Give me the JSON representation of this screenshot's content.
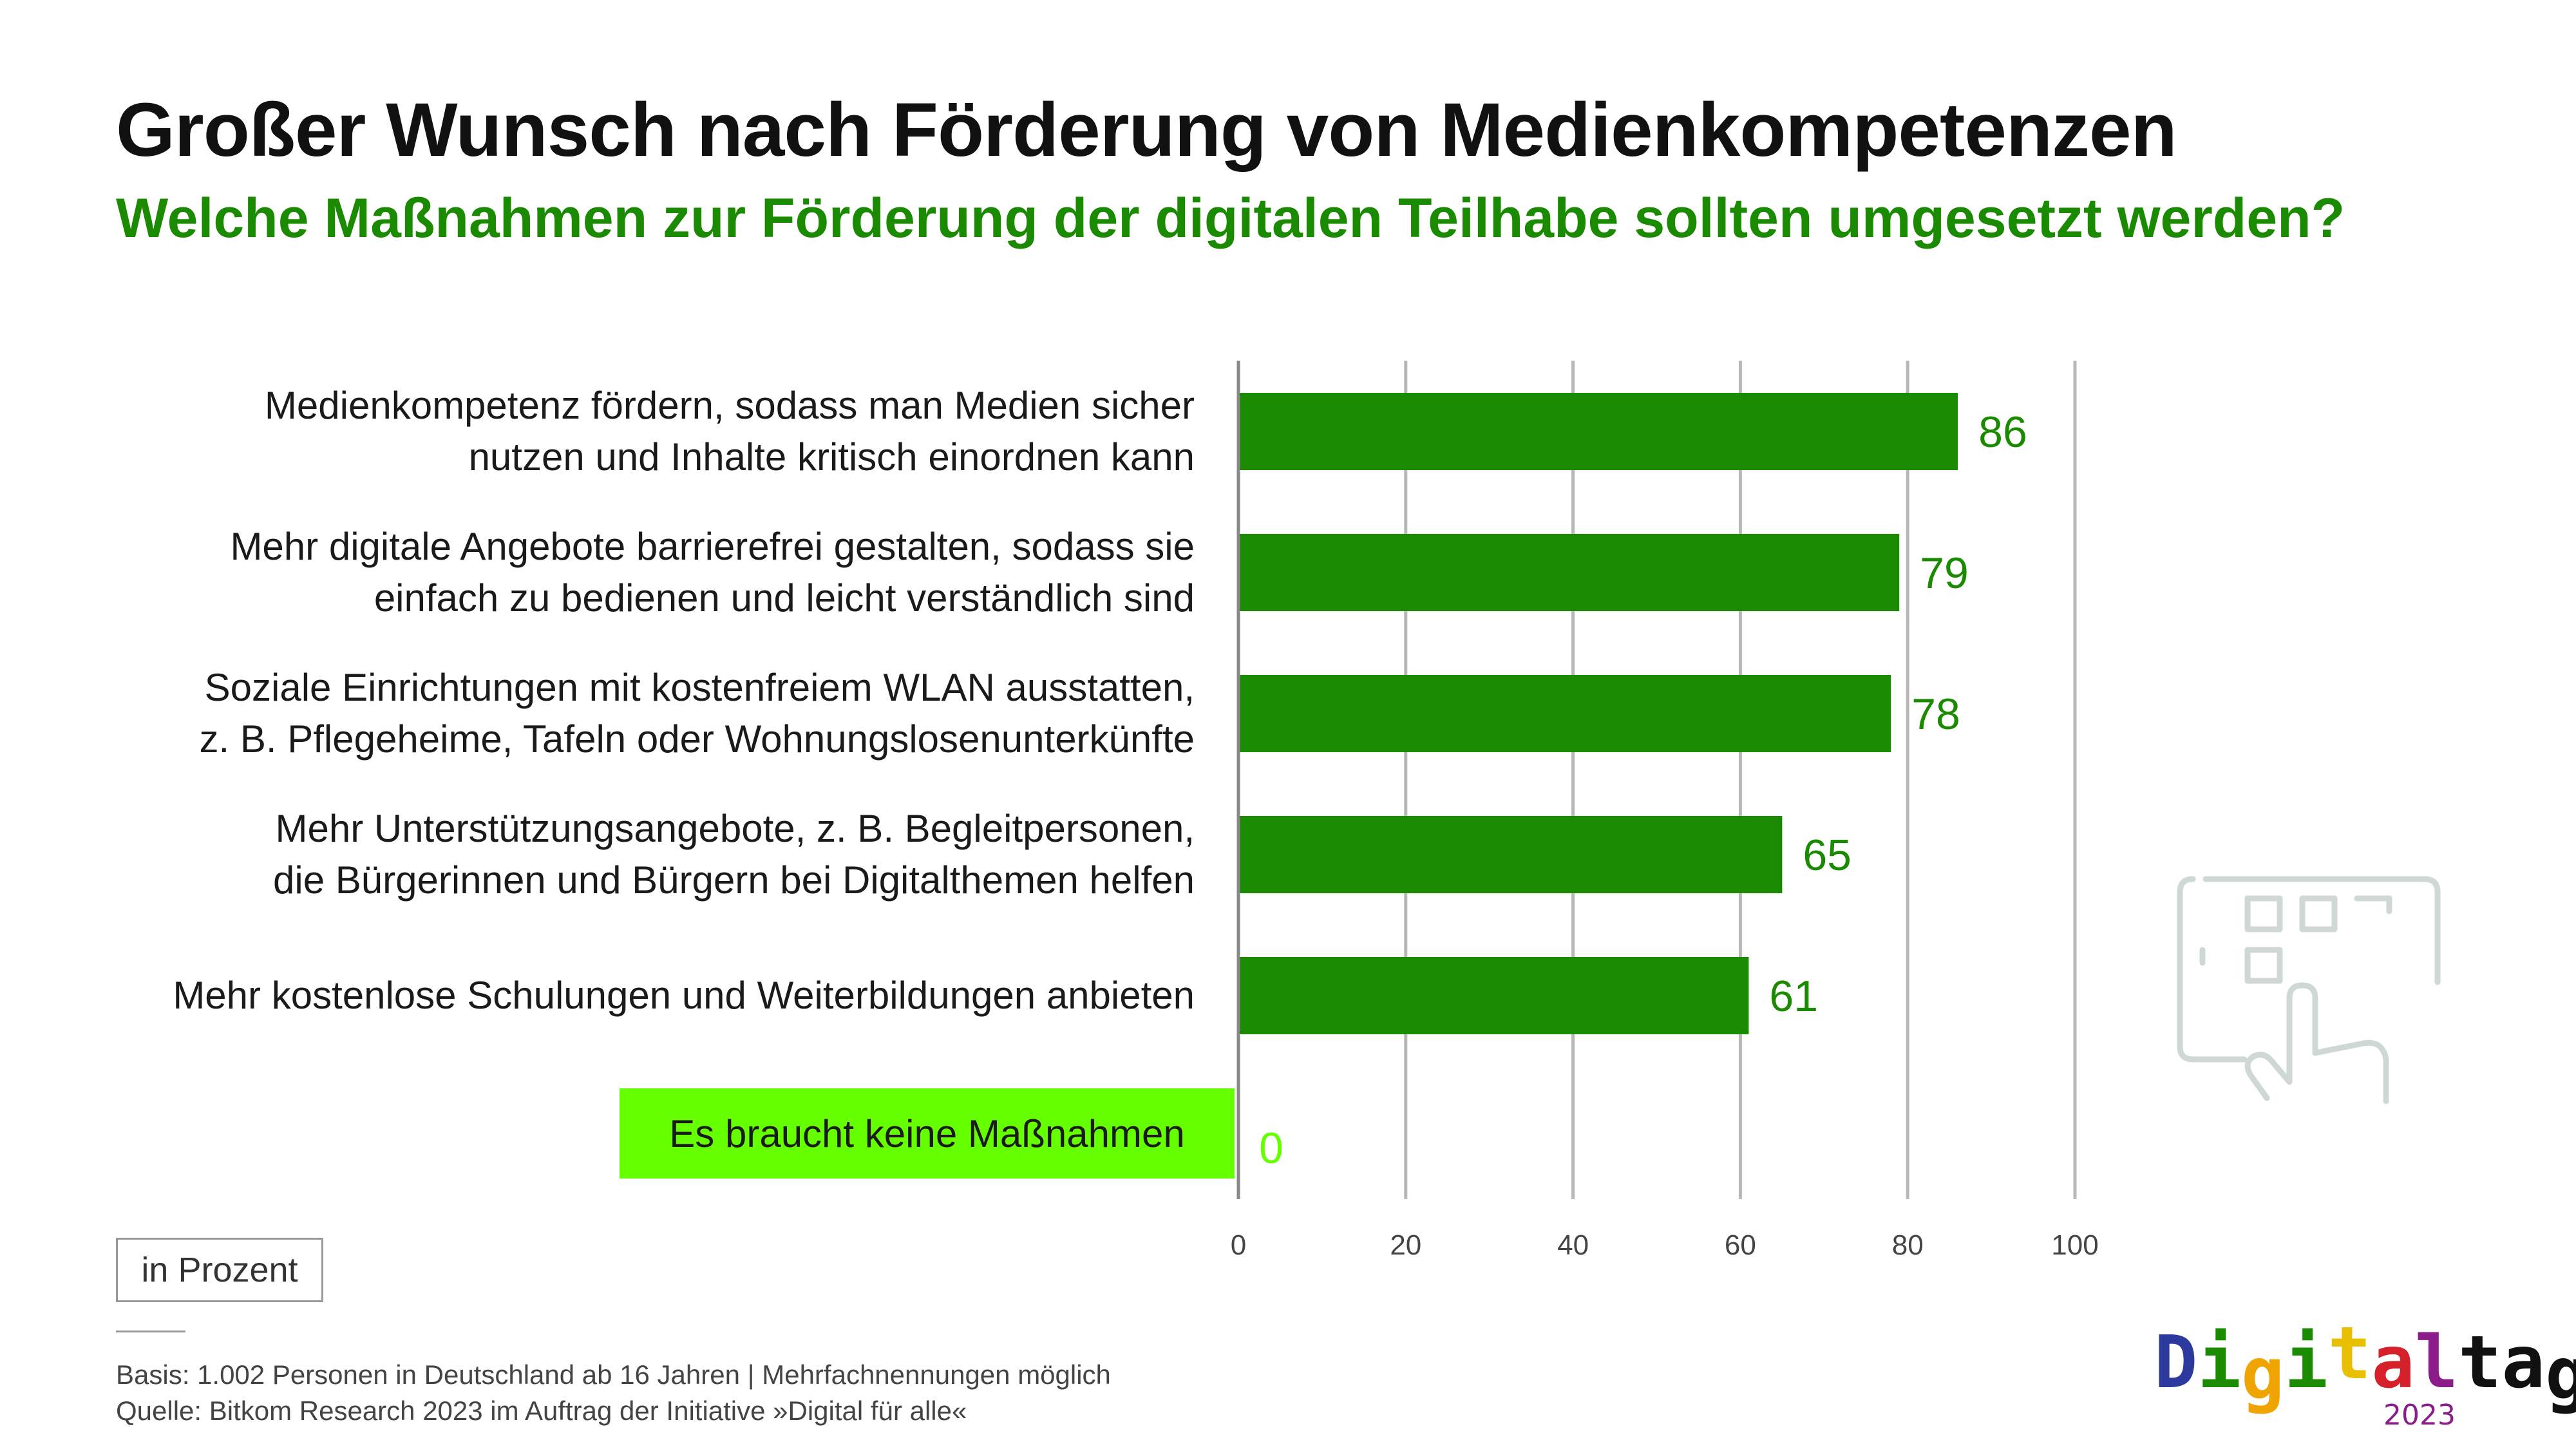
{
  "title": "Großer Wunsch nach Förderung von Medienkompetenzen",
  "subtitle": "Welche Maßnahmen zur Förderung der digitalen Teilhabe sollten umgesetzt werden?",
  "chart_data": {
    "type": "bar",
    "orientation": "horizontal",
    "categories": [
      [
        "Medienkompetenz fördern, sodass man Medien sicher",
        "nutzen und Inhalte kritisch einordnen kann"
      ],
      [
        "Mehr digitale Angebote barrierefrei gestalten, sodass sie",
        "einfach zu bedienen und leicht verständlich sind"
      ],
      [
        "Soziale Einrichtungen mit kostenfreiem WLAN ausstatten,",
        "z. B. Pflegeheime, Tafeln oder Wohnungslosenunterkünfte"
      ],
      [
        "Mehr Unterstützungsangebote, z. B. Begleitpersonen,",
        "die Bürgerinnen und Bürgern bei Digitalthemen helfen"
      ],
      [
        "Mehr kostenlose Schulungen und Weiterbildungen anbieten"
      ],
      [
        "Es braucht keine Maßnahmen"
      ]
    ],
    "values": [
      86,
      79,
      78,
      65,
      61,
      0
    ],
    "xlim": [
      0,
      100
    ],
    "xticks": [
      0,
      20,
      40,
      60,
      80,
      100
    ],
    "grid": true,
    "bar_color": "#1a8a00",
    "highlight_color": "#66ff00",
    "label_color": "#1a8a00"
  },
  "unit_label": "in Prozent",
  "footnotes": {
    "basis": "Basis: 1.002 Personen in Deutschland ab 16 Jahren | Mehrfachnennungen möglich",
    "source": "Quelle: Bitkom Research 2023 im Auftrag der Initiative »Digital für alle«"
  },
  "logo": {
    "letters": [
      "D",
      "i",
      "g",
      "i",
      "t",
      "a",
      "l",
      "t",
      "a",
      "g"
    ],
    "letter_colors": [
      "#2b3a9c",
      "#1a8a00",
      "#f0a400",
      "#1a8a00",
      "#e8c000",
      "#d6202c",
      "#8b1d8b",
      "#111111",
      "#111111",
      "#111111"
    ],
    "year": "2023"
  },
  "icons": {
    "illustration": "tablet-touch-icon"
  }
}
